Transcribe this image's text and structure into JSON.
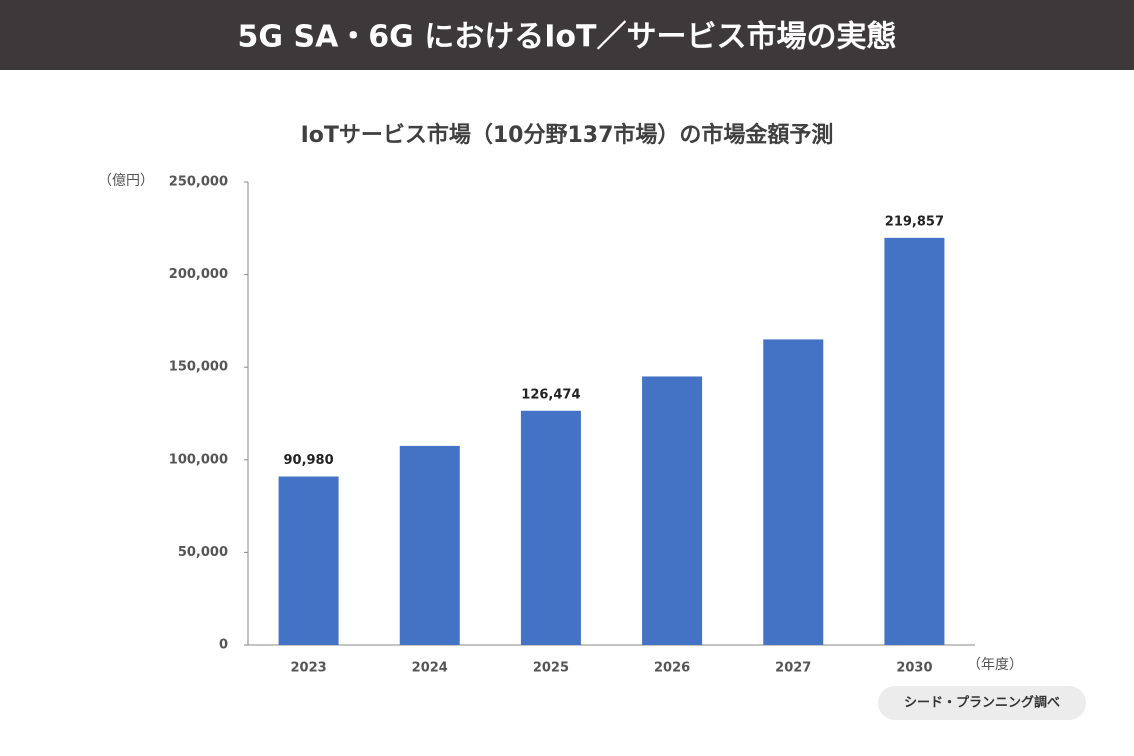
{
  "banner": {
    "title": "5G SA・6G におけるIoT／サービス市場の実態"
  },
  "chart_data": {
    "type": "bar",
    "title": "IoTサービス市場（10分野137市場）の市場金額予測",
    "y_unit": "（億円）",
    "x_unit": "（年度）",
    "source": "シード・プランニング調べ",
    "categories": [
      "2023",
      "2024",
      "2025",
      "2026",
      "2027",
      "2030"
    ],
    "values": [
      90980,
      107500,
      126474,
      145000,
      165000,
      219857
    ],
    "value_labels": [
      "90,980",
      null,
      "126,474",
      null,
      null,
      "219,857"
    ],
    "color": "#4472c4",
    "ylim": [
      0,
      250000
    ],
    "yticks": [
      0,
      {
        "value": 50000,
        "label": "50,000"
      },
      {
        "value": 100000,
        "label": "100,000"
      },
      {
        "value": 150000,
        "label": "150,000"
      },
      {
        "value": 200000,
        "label": "200,000"
      },
      {
        "value": 250000,
        "label": "250,000"
      }
    ],
    "grid": false
  }
}
